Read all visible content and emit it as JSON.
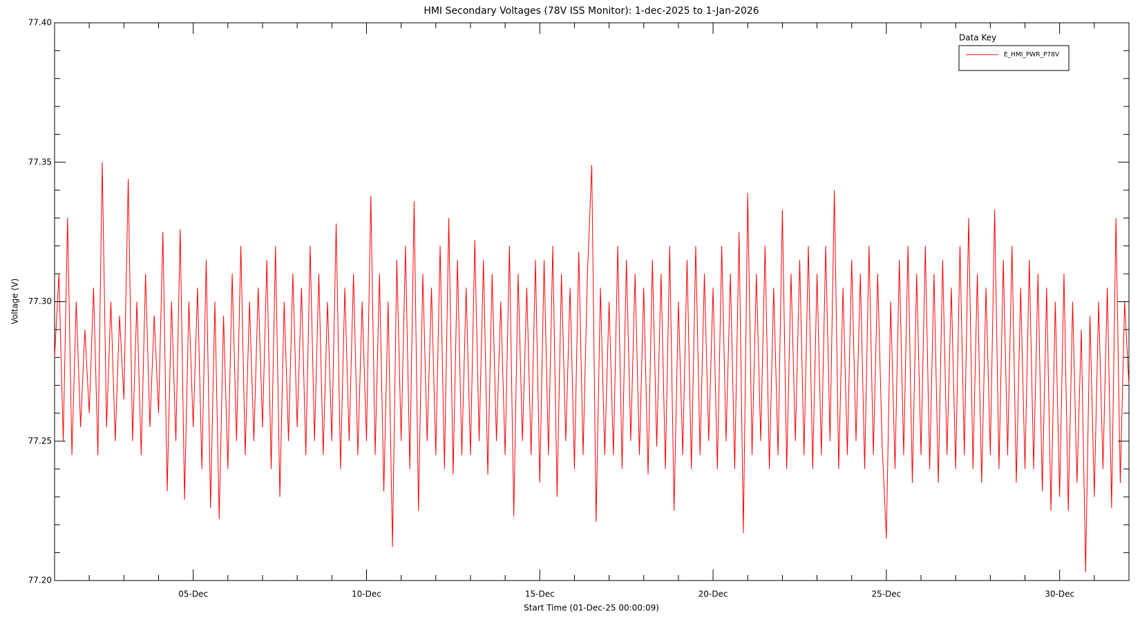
{
  "chart_data": {
    "type": "line",
    "title": "HMI Secondary Voltages (78V ISS Monitor): 1-dec-2025 to 1-Jan-2026",
    "xlabel": "Start Time (01-Dec-25 00:00:09)",
    "ylabel": "Voltage (V)",
    "legend_title": "Data Key",
    "legend": "upper right",
    "xlim": [
      1,
      32
    ],
    "ylim": [
      77.2,
      77.4
    ],
    "xticks": [
      {
        "value": 5,
        "label": "05-Dec"
      },
      {
        "value": 10,
        "label": "10-Dec"
      },
      {
        "value": 15,
        "label": "15-Dec"
      },
      {
        "value": 20,
        "label": "20-Dec"
      },
      {
        "value": 25,
        "label": "25-Dec"
      },
      {
        "value": 30,
        "label": "30-Dec"
      }
    ],
    "yticks": [
      {
        "value": 77.2,
        "label": "77.20"
      },
      77.25,
      {
        "value": 77.3,
        "label": "77.30"
      },
      77.35,
      {
        "value": 77.4,
        "label": "77.40"
      }
    ],
    "xminorticks": [
      2,
      3,
      4,
      6,
      7,
      8,
      9,
      11,
      12,
      13,
      14,
      16,
      17,
      18,
      19,
      21,
      22,
      23,
      24,
      26,
      27,
      28,
      29,
      31
    ],
    "yminorticks": [
      77.21,
      77.22,
      77.23,
      77.24,
      77.26,
      77.27,
      77.28,
      77.29,
      77.31,
      77.32,
      77.33,
      77.34,
      77.36,
      77.37,
      77.38,
      77.39
    ],
    "x": [
      1,
      1.125,
      1.25,
      1.375,
      1.5,
      1.625,
      1.75,
      1.875,
      2,
      2.125,
      2.25,
      2.375,
      2.5,
      2.625,
      2.75,
      2.875,
      3,
      3.125,
      3.25,
      3.375,
      3.5,
      3.625,
      3.75,
      3.875,
      4,
      4.125,
      4.25,
      4.375,
      4.5,
      4.625,
      4.75,
      4.875,
      5,
      5.125,
      5.25,
      5.375,
      5.5,
      5.625,
      5.75,
      5.875,
      6,
      6.125,
      6.25,
      6.375,
      6.5,
      6.625,
      6.75,
      6.875,
      7,
      7.125,
      7.25,
      7.375,
      7.5,
      7.625,
      7.75,
      7.875,
      8,
      8.125,
      8.25,
      8.375,
      8.5,
      8.625,
      8.75,
      8.875,
      9,
      9.125,
      9.25,
      9.375,
      9.5,
      9.625,
      9.75,
      9.875,
      10,
      10.125,
      10.25,
      10.375,
      10.5,
      10.625,
      10.75,
      10.875,
      11,
      11.125,
      11.25,
      11.375,
      11.5,
      11.625,
      11.75,
      11.875,
      12,
      12.125,
      12.25,
      12.375,
      12.5,
      12.625,
      12.75,
      12.875,
      13,
      13.125,
      13.25,
      13.375,
      13.5,
      13.625,
      13.75,
      13.875,
      14,
      14.125,
      14.25,
      14.375,
      14.5,
      14.625,
      14.75,
      14.875,
      15,
      15.125,
      15.25,
      15.375,
      15.5,
      15.625,
      15.75,
      15.875,
      16,
      16.125,
      16.25,
      16.375,
      16.5,
      16.625,
      16.75,
      16.875,
      17,
      17.125,
      17.25,
      17.375,
      17.5,
      17.625,
      17.75,
      17.875,
      18,
      18.125,
      18.25,
      18.375,
      18.5,
      18.625,
      18.75,
      18.875,
      19,
      19.125,
      19.25,
      19.375,
      19.5,
      19.625,
      19.75,
      19.875,
      20,
      20.125,
      20.25,
      20.375,
      20.5,
      20.625,
      20.75,
      20.875,
      21,
      21.125,
      21.25,
      21.375,
      21.5,
      21.625,
      21.75,
      21.875,
      22,
      22.125,
      22.25,
      22.375,
      22.5,
      22.625,
      22.75,
      22.875,
      23,
      23.125,
      23.25,
      23.375,
      23.5,
      23.625,
      23.75,
      23.875,
      24,
      24.125,
      24.25,
      24.375,
      24.5,
      24.625,
      24.75,
      24.875,
      25,
      25.125,
      25.25,
      25.375,
      25.5,
      25.625,
      25.75,
      25.875,
      26,
      26.125,
      26.25,
      26.375,
      26.5,
      26.625,
      26.75,
      26.875,
      27,
      27.125,
      27.25,
      27.375,
      27.5,
      27.625,
      27.75,
      27.875,
      28,
      28.125,
      28.25,
      28.375,
      28.5,
      28.625,
      28.75,
      28.875,
      29,
      29.125,
      29.25,
      29.375,
      29.5,
      29.625,
      29.75,
      29.875,
      30,
      30.125,
      30.25,
      30.375,
      30.5,
      30.625,
      30.75,
      30.875,
      31,
      31.125,
      31.25,
      31.375,
      31.5,
      31.625,
      31.75,
      31.875,
      32
    ],
    "series": [
      {
        "name": "E_HMI_PWR_P78V",
        "color": "#ff0000",
        "values": [
          77.28,
          77.31,
          77.25,
          77.33,
          77.245,
          77.3,
          77.255,
          77.29,
          77.26,
          77.305,
          77.245,
          77.35,
          77.255,
          77.3,
          77.25,
          77.295,
          77.265,
          77.344,
          77.25,
          77.3,
          77.245,
          77.31,
          77.255,
          77.295,
          77.26,
          77.325,
          77.232,
          77.3,
          77.25,
          77.326,
          77.229,
          77.3,
          77.255,
          77.305,
          77.24,
          77.315,
          77.226,
          77.3,
          77.222,
          77.295,
          77.24,
          77.31,
          77.25,
          77.32,
          77.245,
          77.3,
          77.25,
          77.305,
          77.255,
          77.315,
          77.24,
          77.32,
          77.23,
          77.3,
          77.25,
          77.31,
          77.255,
          77.305,
          77.245,
          77.32,
          77.25,
          77.31,
          77.245,
          77.3,
          77.25,
          77.328,
          77.24,
          77.305,
          77.25,
          77.31,
          77.245,
          77.3,
          77.25,
          77.338,
          77.245,
          77.31,
          77.232,
          77.3,
          77.212,
          77.315,
          77.25,
          77.32,
          77.24,
          77.336,
          77.225,
          77.31,
          77.25,
          77.305,
          77.245,
          77.32,
          77.24,
          77.33,
          77.238,
          77.315,
          77.245,
          77.305,
          77.245,
          77.322,
          77.25,
          77.315,
          77.238,
          77.31,
          77.25,
          77.3,
          77.245,
          77.32,
          77.223,
          77.31,
          77.25,
          77.305,
          77.245,
          77.315,
          77.235,
          77.315,
          77.245,
          77.32,
          77.23,
          77.31,
          77.25,
          77.305,
          77.24,
          77.318,
          77.245,
          77.31,
          77.349,
          77.221,
          77.305,
          77.245,
          77.3,
          77.245,
          77.32,
          77.24,
          77.315,
          77.25,
          77.31,
          77.245,
          77.305,
          77.238,
          77.315,
          77.248,
          77.31,
          77.24,
          77.32,
          77.225,
          77.3,
          77.245,
          77.315,
          77.24,
          77.32,
          77.245,
          77.31,
          77.25,
          77.305,
          77.24,
          77.32,
          77.25,
          77.31,
          77.24,
          77.325,
          77.217,
          77.339,
          77.245,
          77.31,
          77.25,
          77.32,
          77.24,
          77.305,
          77.245,
          77.333,
          77.24,
          77.31,
          77.25,
          77.315,
          77.245,
          77.32,
          77.24,
          77.31,
          77.245,
          77.32,
          77.25,
          77.34,
          77.24,
          77.305,
          77.245,
          77.315,
          77.25,
          77.31,
          77.24,
          77.32,
          77.245,
          77.31,
          77.25,
          77.215,
          77.3,
          77.24,
          77.315,
          77.245,
          77.32,
          77.235,
          77.31,
          77.245,
          77.32,
          77.24,
          77.31,
          77.235,
          77.315,
          77.245,
          77.305,
          77.24,
          77.32,
          77.245,
          77.33,
          77.24,
          77.31,
          77.235,
          77.305,
          77.245,
          77.333,
          77.24,
          77.315,
          77.245,
          77.32,
          77.235,
          77.305,
          77.24,
          77.315,
          77.24,
          77.31,
          77.232,
          77.305,
          77.225,
          77.3,
          77.23,
          77.31,
          77.225,
          77.3,
          77.235,
          77.29,
          77.203,
          77.295,
          77.23,
          77.3,
          77.24,
          77.305,
          77.226,
          77.33,
          77.235,
          77.3,
          77.27
        ]
      }
    ]
  }
}
